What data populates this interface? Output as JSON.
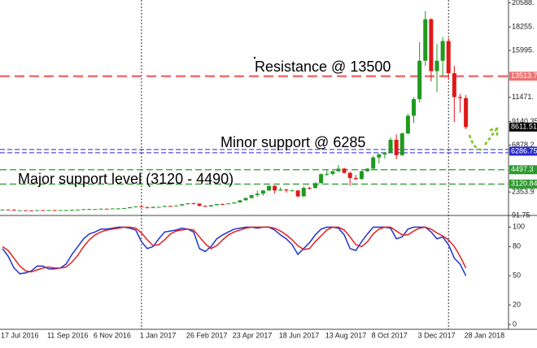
{
  "chart_data": [
    {
      "type": "candlestick",
      "categories": [
        "17 Jul 2016",
        null,
        null,
        null,
        null,
        null,
        null,
        null,
        "11 Sep 2016",
        null,
        null,
        null,
        null,
        null,
        null,
        null,
        "6 Nov 2016",
        null,
        null,
        null,
        null,
        null,
        null,
        null,
        "1 Jan 2017",
        null,
        null,
        null,
        null,
        null,
        null,
        null,
        "26 Feb 2017",
        null,
        null,
        null,
        null,
        null,
        null,
        null,
        "23 Apr 2017",
        null,
        null,
        null,
        null,
        null,
        null,
        null,
        "18 Jun 2017",
        null,
        null,
        null,
        null,
        null,
        null,
        null,
        "13 Aug 2017",
        null,
        null,
        null,
        null,
        null,
        null,
        null,
        "8 Oct 2017",
        null,
        null,
        null,
        null,
        null,
        null,
        null,
        "3 Dec 2017",
        null,
        null,
        null,
        null,
        null,
        null,
        null,
        "28 Jan 2018"
      ],
      "open": [
        650,
        660,
        655,
        590,
        590,
        580,
        575,
        610,
        605,
        608,
        600,
        610,
        615,
        640,
        655,
        700,
        705,
        710,
        740,
        735,
        765,
        770,
        790,
        890,
        960,
        900,
        820,
        920,
        920,
        1010,
        1000,
        1050,
        1170,
        1260,
        1230,
        1020,
        960,
        1080,
        1190,
        1180,
        1250,
        1350,
        1550,
        1780,
        2050,
        2190,
        2500,
        2950,
        2500,
        2590,
        2500,
        2500,
        1930,
        2750,
        2740,
        3200,
        4070,
        4100,
        4350,
        4600,
        4200,
        3700,
        3600,
        4360,
        4600,
        5680,
        5980,
        6150,
        7380,
        5900,
        8000,
        9700,
        11300,
        15000,
        19000,
        14000,
        15000,
        16900,
        13800,
        11500,
        11400
      ],
      "high": [
        680,
        675,
        660,
        600,
        595,
        590,
        615,
        615,
        612,
        612,
        615,
        620,
        645,
        660,
        715,
        740,
        720,
        750,
        755,
        770,
        780,
        800,
        900,
        975,
        1150,
        920,
        930,
        935,
        1020,
        1040,
        1060,
        1190,
        1290,
        1330,
        1250,
        1050,
        1090,
        1200,
        1230,
        1260,
        1360,
        1560,
        1800,
        2100,
        2500,
        2550,
        2980,
        2990,
        2800,
        2650,
        2600,
        2550,
        2900,
        2850,
        3300,
        4150,
        4450,
        4400,
        4950,
        4700,
        4300,
        4000,
        4400,
        4650,
        5850,
        6100,
        6200,
        7600,
        7900,
        8100,
        9900,
        11500,
        16800,
        19800,
        19100,
        16600,
        17300,
        17200,
        14500,
        11800,
        11700
      ],
      "low": [
        640,
        645,
        540,
        580,
        565,
        565,
        570,
        595,
        600,
        595,
        598,
        605,
        610,
        635,
        650,
        690,
        690,
        700,
        725,
        730,
        755,
        765,
        785,
        880,
        880,
        750,
        810,
        885,
        910,
        980,
        990,
        1040,
        1160,
        1200,
        960,
        900,
        950,
        1070,
        1160,
        1170,
        1240,
        1340,
        1540,
        1700,
        1900,
        2000,
        2450,
        2200,
        2450,
        2300,
        2450,
        1850,
        1900,
        2600,
        2700,
        3180,
        3900,
        3950,
        4300,
        4100,
        2950,
        3500,
        3550,
        4300,
        4580,
        5100,
        5600,
        6100,
        5500,
        5850,
        7900,
        9000,
        11000,
        14500,
        13000,
        12000,
        13500,
        13200,
        9100,
        10000,
        8400
      ],
      "close": [
        660,
        655,
        590,
        590,
        580,
        575,
        610,
        605,
        608,
        600,
        610,
        615,
        640,
        655,
        700,
        705,
        710,
        740,
        735,
        765,
        770,
        790,
        890,
        960,
        900,
        820,
        920,
        920,
        1010,
        1000,
        1050,
        1170,
        1260,
        1230,
        1020,
        960,
        1080,
        1190,
        1180,
        1250,
        1350,
        1550,
        1780,
        2050,
        2190,
        2500,
        2950,
        2500,
        2590,
        2500,
        2500,
        1930,
        2750,
        2740,
        3200,
        4070,
        4100,
        4350,
        4600,
        4200,
        3700,
        3600,
        4360,
        4600,
        5680,
        5980,
        6150,
        7380,
        5900,
        8000,
        9700,
        11300,
        15000,
        19000,
        14000,
        15000,
        16900,
        13800,
        11500,
        11400,
        8611.51
      ],
      "up_color": "#1f9a1f",
      "down_color": "#e01818",
      "ylim": [
        91.75,
        20856
      ],
      "yticks": [
        {
          "value": 20588,
          "label": "20588."
        },
        {
          "value": 18255,
          "label": "18255."
        },
        {
          "value": 15995,
          "label": "15995."
        },
        {
          "value": 11471,
          "label": "11471."
        },
        9140.35,
        6878.2,
        2353.9,
        91.75
      ],
      "price_labels": [
        {
          "value": 13513.7,
          "label": "13513.7",
          "color": "#f07070",
          "line": "dashed"
        },
        {
          "value": 8611.51,
          "label": "8611.51",
          "color": "#000000"
        },
        {
          "value": 6286.75,
          "label": "6286.75",
          "color": "#2a2ad0",
          "line": "double"
        },
        {
          "value": 4497.3,
          "label": "4497.3",
          "color": "#2a9a2a",
          "line": "dashed"
        },
        {
          "value": 3120.84,
          "label": "3120.84",
          "color": "#2a9a2a",
          "line": "dashed"
        }
      ],
      "annotations": [
        "Resistance @ 13500",
        "Minor support @ 6285",
        "Major support level (3120 - 4490)"
      ]
    },
    {
      "type": "line",
      "series": [
        {
          "color": "#2233cc",
          "values": [
            78,
            70,
            58,
            52,
            53,
            55,
            60,
            60,
            57,
            57,
            58,
            62,
            72,
            80,
            88,
            93,
            95,
            98,
            98,
            99,
            100,
            100,
            99,
            97,
            85,
            78,
            80,
            88,
            95,
            96,
            97,
            99,
            98,
            95,
            78,
            75,
            80,
            88,
            92,
            95,
            98,
            99,
            100,
            100,
            99,
            100,
            100,
            97,
            92,
            88,
            82,
            72,
            78,
            84,
            92,
            98,
            100,
            100,
            99,
            92,
            78,
            76,
            85,
            93,
            100,
            100,
            100,
            99,
            88,
            90,
            98,
            100,
            100,
            100,
            95,
            88,
            90,
            82,
            68,
            62,
            50
          ]
        },
        {
          "color": "#e02020",
          "values": [
            80,
            76,
            68,
            60,
            55,
            54,
            56,
            58,
            59,
            58,
            58,
            59,
            64,
            71,
            80,
            87,
            92,
            95,
            97,
            98,
            99,
            100,
            100,
            99,
            94,
            87,
            81,
            82,
            87,
            93,
            96,
            97,
            98,
            97,
            90,
            83,
            78,
            81,
            87,
            92,
            95,
            97,
            99,
            100,
            100,
            100,
            100,
            99,
            96,
            92,
            87,
            81,
            77,
            78,
            85,
            91,
            97,
            100,
            100,
            97,
            90,
            82,
            80,
            85,
            93,
            98,
            100,
            100,
            96,
            92,
            92,
            96,
            99,
            100,
            98,
            94,
            91,
            87,
            80,
            70,
            58
          ]
        }
      ],
      "ylim": [
        -5,
        112
      ],
      "yticks": [
        100,
        80,
        50,
        20,
        0
      ]
    }
  ]
}
